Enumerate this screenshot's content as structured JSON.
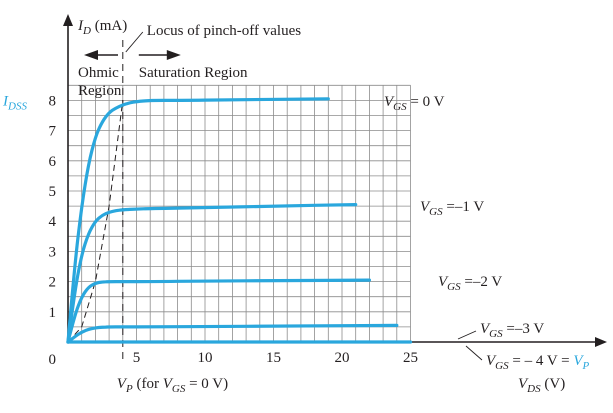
{
  "chart_data": {
    "type": "line",
    "xlabel": {
      "symbol": "V",
      "sub": "DS",
      "unit": " (V)"
    },
    "ylabel": {
      "symbol": "I",
      "sub": "D",
      "unit": " (mA)"
    },
    "xlim": [
      0,
      25
    ],
    "ylim": [
      0,
      8.7
    ],
    "xticks": [
      5,
      10,
      15,
      20,
      25
    ],
    "yticks": [
      1,
      2,
      3,
      4,
      5,
      6,
      7,
      8
    ],
    "origin_label": "0",
    "grid": true,
    "series": [
      {
        "name": "VGS = 0 V",
        "vgs": 0,
        "idss_level": 8.0,
        "xs": [
          0,
          0.5,
          1,
          1.5,
          2,
          2.5,
          3,
          3.5,
          4,
          4.5,
          5,
          6,
          8,
          12,
          19
        ],
        "values": [
          0,
          2.6,
          4.5,
          5.9,
          6.8,
          7.3,
          7.6,
          7.75,
          7.85,
          7.92,
          7.96,
          8.0,
          8.0,
          8.02,
          8.05
        ]
      },
      {
        "name": "VGS = -1 V",
        "vgs": -1,
        "xs": [
          0,
          0.5,
          1,
          1.5,
          2,
          2.5,
          3,
          3.5,
          4,
          5,
          6,
          10,
          15,
          21
        ],
        "values": [
          0,
          1.7,
          2.9,
          3.6,
          4.0,
          4.2,
          4.3,
          4.35,
          4.38,
          4.4,
          4.42,
          4.45,
          4.5,
          4.55
        ]
      },
      {
        "name": "VGS = -2 V",
        "vgs": -2,
        "xs": [
          0,
          0.5,
          1,
          1.5,
          2,
          2.5,
          3,
          4,
          6,
          10,
          16,
          22
        ],
        "values": [
          0,
          0.9,
          1.5,
          1.82,
          1.95,
          1.99,
          2.0,
          2.0,
          2.0,
          2.02,
          2.03,
          2.05
        ]
      },
      {
        "name": "VGS = -3 V",
        "vgs": -3,
        "xs": [
          0,
          0.5,
          1,
          1.5,
          2,
          2.5,
          3,
          4,
          6,
          10,
          16,
          24
        ],
        "values": [
          0,
          0.18,
          0.33,
          0.42,
          0.47,
          0.49,
          0.5,
          0.5,
          0.5,
          0.51,
          0.53,
          0.55
        ]
      },
      {
        "name": "VGS = -4 V = VP",
        "vgs": -4,
        "xs": [
          0,
          25
        ],
        "values": [
          0,
          0
        ]
      }
    ],
    "pinchoff_locus": {
      "xs": [
        0,
        1,
        2,
        3,
        4
      ],
      "values": [
        0,
        0.5,
        2.0,
        4.5,
        8.0
      ]
    },
    "vp_marker_x": 4,
    "annotations": {
      "locus": "Locus of pinch-off values",
      "ohmic_line1": "Ohmic",
      "ohmic_line2": "Region",
      "saturation": "Saturation Region",
      "idss": {
        "symbol": "I",
        "sub": "DSS"
      },
      "vp_note": {
        "symbol": "V",
        "sub": "P",
        "pre": " (for ",
        "v2": "V",
        "sub2": "GS",
        "post": " = 0 V)"
      },
      "curve_labels": [
        {
          "text1": "V",
          "sub": "GS",
          "text2": " = 0 V"
        },
        {
          "text1": "V",
          "sub": "GS",
          "text2": " =–1 V"
        },
        {
          "text1": "V",
          "sub": "GS",
          "text2": " =–2 V"
        },
        {
          "text1": "V",
          "sub": "GS",
          "text2": " =–3 V"
        },
        {
          "text1": "V",
          "sub": "GS",
          "text2": " = – 4 V = ",
          "accent": "V",
          "accent_sub": "P"
        }
      ]
    },
    "colors": {
      "curve": "#2aa7dd",
      "grid": "#8c8c8c",
      "axis": "#231f20",
      "accent_text": "#2aa7dd"
    }
  }
}
